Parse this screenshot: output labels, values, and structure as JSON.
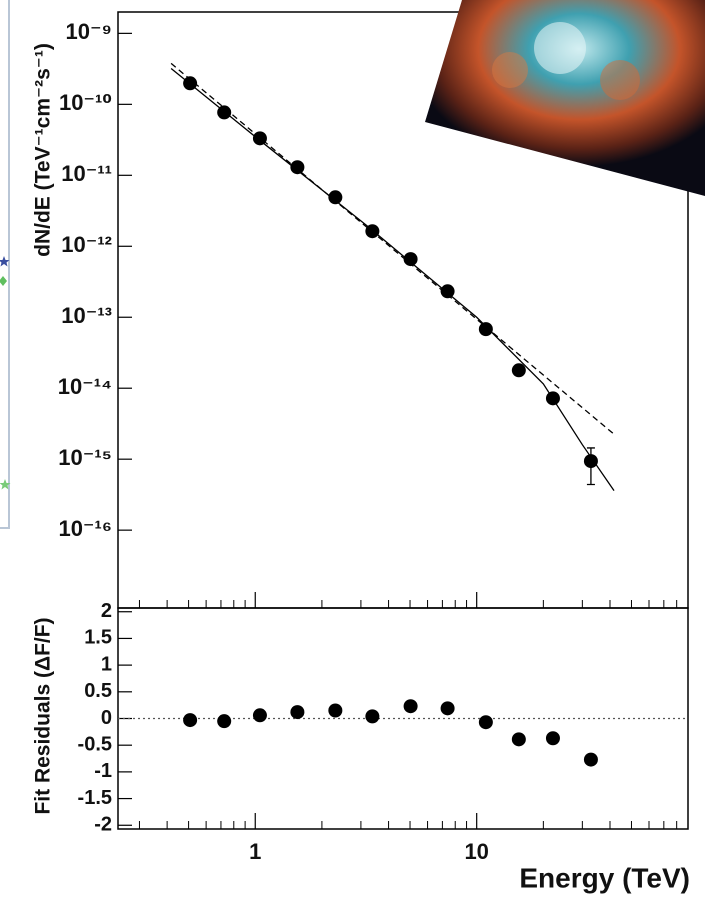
{
  "chart_data": [
    {
      "type": "scatter",
      "xlog": true,
      "ylog": true,
      "ylabel": "dN/dE (TeV⁻¹cm⁻²s⁻¹)",
      "xlim": [
        0.24,
        90
      ],
      "ylim": [
        8e-18,
        2e-09
      ],
      "xticks": [
        1,
        10
      ],
      "xticks_minor": [
        0.3,
        0.4,
        0.5,
        0.6,
        0.7,
        0.8,
        0.9,
        2,
        3,
        4,
        5,
        6,
        7,
        8,
        9,
        20,
        30,
        40,
        50,
        60,
        70,
        80,
        90
      ],
      "yticks": [
        {
          "value": 1e-09,
          "label": "10⁻⁹"
        },
        {
          "value": 1e-10,
          "label": "10⁻¹⁰"
        },
        {
          "value": 1e-11,
          "label": "10⁻¹¹"
        },
        {
          "value": 1e-12,
          "label": "10⁻¹²"
        },
        {
          "value": 1e-13,
          "label": "10⁻¹³"
        },
        {
          "value": 1e-14,
          "label": "10⁻¹⁴"
        },
        {
          "value": 1e-15,
          "label": "10⁻¹⁵"
        },
        {
          "value": 1e-16,
          "label": "10⁻¹⁶"
        }
      ],
      "series": [
        {
          "style": "points",
          "color": "#000000",
          "x": [
            0.508,
            0.724,
            1.05,
            1.55,
            2.3,
            3.38,
            5.03,
            7.39,
            11.0,
            15.5,
            22.1,
            32.8
          ],
          "values": [
            1.98e-10,
            7.7e-11,
            3.32e-11,
            1.3e-11,
            4.9e-12,
            1.63e-12,
            6.6e-13,
            2.32e-13,
            6.8e-14,
            1.79e-14,
            7.2e-15,
            9.4e-16
          ],
          "errors": [
            null,
            null,
            null,
            null,
            null,
            null,
            null,
            null,
            null,
            null,
            null,
            5e-16
          ]
        },
        {
          "style": "solid",
          "color": "#000000",
          "x": [
            0.417,
            1,
            3.16,
            10,
            20,
            30,
            41.7
          ],
          "values": [
            3.2e-10,
            3.5e-11,
            2e-12,
            1e-13,
            1.15e-14,
            1.6e-15,
            3.6e-16
          ]
        },
        {
          "style": "dashed",
          "color": "#000000",
          "x": [
            0.417,
            41.7
          ],
          "values": [
            3.77e-10,
            2.25e-15
          ]
        }
      ]
    },
    {
      "type": "scatter",
      "xlog": true,
      "ylog": false,
      "ylabel": "Fit Residuals (ΔF/F)",
      "xlabel": "Energy (TeV)",
      "xlim": [
        0.24,
        90
      ],
      "ylim": [
        -2.07,
        2.07
      ],
      "xticks": [
        1,
        10
      ],
      "xticks_minor": [
        0.3,
        0.4,
        0.5,
        0.6,
        0.7,
        0.8,
        0.9,
        2,
        3,
        4,
        5,
        6,
        7,
        8,
        9,
        20,
        30,
        40,
        50,
        60,
        70,
        80,
        90
      ],
      "yticks": [
        2,
        1.5,
        1,
        0.5,
        0,
        -0.5,
        -1,
        -1.5,
        -2
      ],
      "reference_line": 0,
      "series": [
        {
          "style": "points",
          "color": "#000000",
          "x": [
            0.508,
            0.724,
            1.05,
            1.55,
            2.3,
            3.38,
            5.03,
            7.39,
            11.0,
            15.5,
            22.1,
            32.8
          ],
          "values": [
            -0.03,
            -0.05,
            0.06,
            0.12,
            0.15,
            0.04,
            0.23,
            0.19,
            -0.07,
            -0.39,
            -0.37,
            -0.77
          ],
          "errors": [
            null,
            null,
            null,
            null,
            null,
            null,
            null,
            null,
            null,
            null,
            0.06,
            0.07
          ]
        }
      ]
    }
  ]
}
